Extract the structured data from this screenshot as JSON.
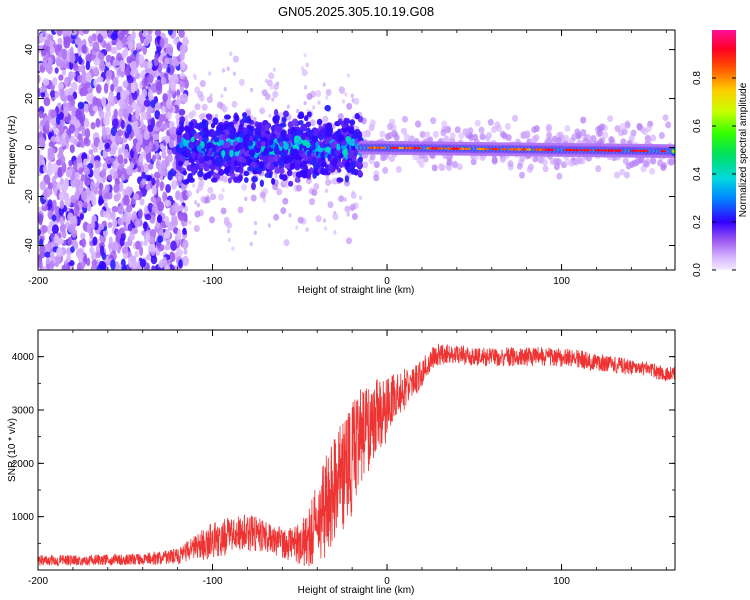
{
  "title": "GN05.2025.305.10.19.G08",
  "chart_data": [
    {
      "type": "heatmap",
      "xlabel": "Height of straight line (km)",
      "ylabel": "Frequency (Hz)",
      "xlim": [
        -200,
        165
      ],
      "ylim": [
        -50,
        48
      ],
      "xticks": [
        -200,
        -100,
        0,
        100
      ],
      "xtick_labels": [
        "-200",
        "-100",
        "0",
        "100"
      ],
      "yticks": [
        -40,
        -20,
        0,
        20,
        40
      ],
      "ytick_labels": [
        "-40",
        "-20",
        "0",
        "20",
        "40"
      ],
      "colorbar": {
        "label": "Normalized spectral amplitude",
        "range": [
          0,
          1
        ],
        "ticks": [
          0.0,
          0.2,
          0.4,
          0.6,
          0.8
        ],
        "tick_labels": [
          "0.0",
          "0.2",
          "0.4",
          "0.6",
          "0.8"
        ]
      },
      "features": {
        "scatter_region_x": [
          -200,
          -115
        ],
        "spread_region_x": [
          -120,
          -15
        ],
        "line_region_x": [
          -15,
          165
        ],
        "line_frequency_hz": 0,
        "line_drift_end_hz": -1.5,
        "noise_frequency_span_hz": [
          -50,
          48
        ]
      }
    },
    {
      "type": "line",
      "xlabel": "Height of straight line (km)",
      "ylabel": "SNR (10 * v/v)",
      "xlim": [
        -200,
        165
      ],
      "ylim": [
        0,
        4500
      ],
      "xticks": [
        -200,
        -100,
        0,
        100
      ],
      "xtick_labels": [
        "-200",
        "-100",
        "0",
        "100"
      ],
      "yticks": [
        1000,
        2000,
        3000,
        4000
      ],
      "ytick_labels": [
        "1000",
        "2000",
        "3000",
        "4000"
      ],
      "color": "#ee3333",
      "x": [
        -200,
        -180,
        -160,
        -140,
        -120,
        -110,
        -100,
        -90,
        -80,
        -70,
        -60,
        -50,
        -45,
        -40,
        -35,
        -30,
        -25,
        -20,
        -15,
        -10,
        -5,
        0,
        5,
        10,
        15,
        20,
        25,
        30,
        40,
        50,
        60,
        70,
        80,
        90,
        100,
        110,
        120,
        130,
        140,
        150,
        165
      ],
      "y": [
        180,
        185,
        190,
        200,
        260,
        400,
        550,
        650,
        700,
        650,
        520,
        500,
        600,
        900,
        1200,
        1500,
        1800,
        2100,
        2400,
        2700,
        2900,
        3000,
        3200,
        3400,
        3500,
        3700,
        3950,
        4050,
        4050,
        4000,
        4000,
        4000,
        4000,
        4000,
        3980,
        3960,
        3900,
        3850,
        3800,
        3750,
        3650
      ],
      "noise_amplitude": [
        100,
        100,
        100,
        110,
        150,
        250,
        350,
        350,
        350,
        300,
        300,
        400,
        550,
        800,
        1000,
        1000,
        1100,
        1100,
        1000,
        800,
        700,
        600,
        500,
        400,
        300,
        250,
        220,
        200,
        180,
        180,
        180,
        180,
        180,
        180,
        180,
        170,
        170,
        160,
        150,
        150,
        150
      ]
    }
  ]
}
